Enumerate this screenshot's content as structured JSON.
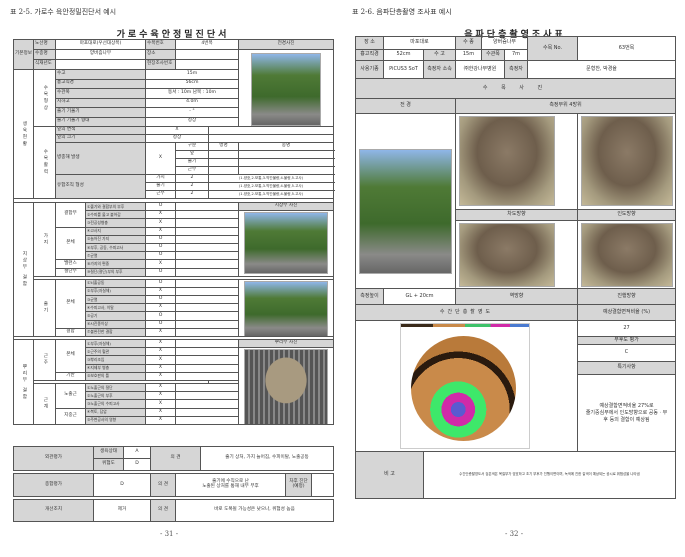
{
  "left": {
    "caption": "표 2-5. 가로수 육안정밀진단서 예시",
    "title": "가로수육안정밀진단서",
    "basic": {
      "section": "기본정보",
      "rows": [
        [
          "노선명",
          "마포대로(우선대상목)",
          "수목번호",
          "4번목"
        ],
        [
          "수종명",
          "양버즘나무",
          "장소",
          ""
        ],
        [
          "식재년도",
          "",
          "현장조사번호",
          ""
        ]
      ],
      "photo_label": "전경사진"
    },
    "growth": {
      "section": "생육현황",
      "shape_label": "수목형상",
      "shape": [
        [
          "수고",
          "15m"
        ],
        [
          "흉고직경",
          "56cm"
        ],
        [
          "수관폭",
          "동서 : 10m    남북 : 10m"
        ],
        [
          "지하고",
          "4.0m"
        ],
        [
          "줄기 기울기",
          "- °"
        ],
        [
          "줄기 기울기 형태",
          "정상"
        ]
      ],
      "vitality_label": "수목활력",
      "leaf": [
        [
          "잎의 변색",
          "X"
        ],
        [
          "잎의 크기",
          "정상"
        ]
      ],
      "pest": {
        "label": "병충해 발생",
        "value": "X",
        "headers": [
          "구분",
          "병명",
          "충명"
        ],
        "parts": [
          "잎",
          "줄기",
          "근부"
        ]
      },
      "wound": {
        "label": "유합조직 형성",
        "rows": [
          [
            "가지",
            "2",
            "(1.양호,2.보통,3.약간불량,4.불량,5.고사)"
          ],
          [
            "줄기",
            "2",
            "(1.양호,2.보통,3.약간불량,4.불량,5.고사)"
          ],
          [
            "근부",
            "2",
            "(1.양호,2.보통,3.약간불량,4.불량,5.고사)"
          ]
        ]
      }
    },
    "above": {
      "section": "지상부 결함",
      "photo_label": "지상부 사진",
      "branch_label": "가지",
      "branch": [
        [
          "결합부",
          "①줄기와 결합부의 부후",
          "O"
        ],
        [
          "",
          "②수피를 물고 붙어감",
          "X"
        ],
        [
          "",
          "③전공성형충",
          "X"
        ],
        [
          "본체",
          "④고사지",
          "X"
        ],
        [
          "",
          "⑤늘어진 가지",
          "O"
        ],
        [
          "",
          "⑥부후, 공동, 수피고사",
          "O"
        ],
        [
          "",
          "⑦균열",
          "O"
        ],
        [
          "밸런스",
          "⑧가지의 편중",
          "X"
        ],
        [
          "절단부",
          "⑨절단(절단)부의 부후",
          "O"
        ]
      ],
      "stem_label": "줄기",
      "stem": [
        [
          "본체",
          "①뇌출공동",
          "O"
        ],
        [
          "",
          "②부후(자실체)",
          "X"
        ],
        [
          "",
          "③균열",
          "O"
        ],
        [
          "",
          "④수피고사, 이탈",
          "X"
        ],
        [
          "",
          "⑤공기",
          "O"
        ],
        [
          "",
          "⑥시진종이상",
          "O"
        ],
        [
          "결합",
          "⑦불완전한 결합",
          "X"
        ]
      ]
    },
    "root": {
      "section": "뿌리부 결함",
      "photo_label": "뿌리부 사진",
      "collar_label": "근주",
      "collar": [
        [
          "본체",
          "①부후(자실체)",
          "X"
        ],
        [
          "",
          "②근주의 혈관",
          "X"
        ],
        [
          "",
          "③뿌리조임",
          "X"
        ],
        [
          "",
          "④지제부 병충",
          "X"
        ],
        [
          "기반",
          "⑤보호판의 틀",
          "X"
        ]
      ],
      "system_label": "근계",
      "system": [
        [
          "노출근",
          "①노출근의 절단",
          "X"
        ],
        [
          "",
          "②노출근의 부후",
          "X"
        ],
        [
          "",
          "③노출근의 수피고사",
          "X"
        ],
        [
          "지중근",
          "④복토, 답압",
          "X"
        ],
        [
          "",
          "⑤주변공사의 영향",
          "X"
        ]
      ]
    },
    "appearance": {
      "label": "외관평가",
      "growth_label": "생육상태",
      "growth": "A",
      "risk_label": "위험도",
      "risk": "D",
      "opinion_label": "의 견",
      "opinion": "줄기 상처, 가지 늘어짐, 수피이탈, 노출공동"
    },
    "overall": {
      "label": "종합평가",
      "value": "D",
      "opinion_label": "의 견",
      "opinion": "줄기에 수직으로 난\n노출된 상처를 통해 내부 부후",
      "extra_label": "차후 진단\n(예정)",
      "extra": ""
    },
    "action": {
      "label": "개선조치",
      "value": "제거",
      "opinion_label": "의 견",
      "opinion": "바로 도복될 가능성은 낮으나, 위험성 높음"
    },
    "page": "- 31 -"
  },
  "right": {
    "caption": "표 2-6. 음파단층촬영 조사표 예시",
    "title": "음파단층촬영조사표",
    "info": {
      "place_label": "장 소",
      "place": "마포대로",
      "species_label": "수 종",
      "species": "양버즘나무",
      "no_label": "수목 No.",
      "no": "63번목",
      "dbh_label": "흉고직경",
      "dbh": "52cm",
      "height_label": "수 고",
      "height": "15m",
      "crown_label": "수관폭",
      "crown": "7m",
      "device_label": "사용기종",
      "device": "PiCUS3 SoT",
      "org_label": "측정자 소속",
      "org": "㈜한강나무병원",
      "person_label": "측정자",
      "person": "문형찬, 박경율"
    },
    "photos": {
      "section": "수 목 사 진",
      "overview": "전 경",
      "measure": "측정부위 4방위",
      "road": "차도방향",
      "sidewalk": "인도방향"
    },
    "measure": {
      "height_label": "측정높이",
      "height": "GL + 20cm",
      "dir1": "역방향",
      "dir2": "진행방향"
    },
    "tomo": {
      "label": "수간단층촬영도",
      "ratio_label": "예상결함면적비율 (%)",
      "ratio": "27",
      "decay_label": "부후도 평가",
      "decay": "C",
      "note_label": "특기사항",
      "note": "예상결함면적비율 27%로\n줄기중심부에서 인도방향으로 공동ㆍ부\n후 등의 결함이 예상됨"
    },
    "remark": {
      "label": "비   고",
      "text": "수간단층촬영도서 검은색은 목질부가 양호하고 초기 부후가 진행이면이며, 녹색에 진한 갈색이 예상되는 공시로 위험성을 나타냄"
    },
    "page": "- 32 -"
  },
  "colors": {
    "header_gray": "#d6d6d6",
    "border": "#555555"
  }
}
